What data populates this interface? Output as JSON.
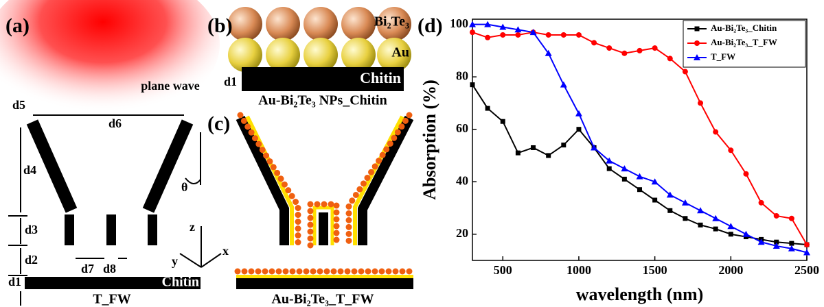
{
  "diagram": {
    "panel_labels": [
      "(a)",
      "(b)",
      "(c)",
      "(d)"
    ],
    "panel_a": {
      "plane_wave": "plane wave",
      "d5": "d5",
      "d6": "d6",
      "d4": "d4",
      "theta": "θ",
      "d3": "d3",
      "d2": "d2",
      "d1": "d1",
      "d7": "d7",
      "d8": "d8",
      "axis_z": "z",
      "axis_y": "y",
      "axis_x": "x",
      "substrate": "Chitin",
      "caption": "T_FW"
    },
    "panel_b": {
      "top": "Bi₂Te₃",
      "middle": "Au",
      "substrate": "Chitin",
      "d1": "d1",
      "caption": "Au-Bi₂Te₃ NPs_Chitin"
    },
    "panel_c": {
      "caption": "Au-Bi₂Te₃_T_FW"
    }
  },
  "chart_data": {
    "type": "line",
    "xlabel": "wavelength (nm)",
    "ylabel": "Absorption (%)",
    "x": [
      300,
      400,
      500,
      600,
      700,
      800,
      900,
      1000,
      1100,
      1200,
      1300,
      1400,
      1500,
      1600,
      1700,
      1800,
      1900,
      2000,
      2100,
      2200,
      2300,
      2400,
      2500
    ],
    "series": [
      {
        "name": "Au-Bi₂Te₃_Chitin",
        "color": "#000000",
        "marker": "square",
        "values": [
          77,
          68,
          63,
          51,
          53,
          50,
          54,
          60,
          53,
          45,
          41,
          37,
          33,
          29,
          26,
          23.5,
          22,
          20,
          19,
          18,
          17,
          16.5,
          16
        ]
      },
      {
        "name": "Au-Bi₂Te₃_T_FW",
        "color": "#ff0000",
        "marker": "circle",
        "values": [
          97,
          95,
          96,
          96,
          97,
          96,
          96,
          96,
          93,
          91,
          89,
          90,
          91,
          87,
          82,
          70,
          59,
          52,
          43,
          32,
          27,
          26,
          16
        ]
      },
      {
        "name": "T_FW",
        "color": "#0000ff",
        "marker": "triangle",
        "values": [
          100,
          100,
          99,
          98,
          97,
          89,
          77,
          66,
          53,
          48,
          45,
          42,
          40,
          35,
          32,
          29,
          26,
          23,
          20,
          17,
          15.5,
          14.5,
          13
        ]
      }
    ],
    "xlim": [
      300,
      2500
    ],
    "ylim": [
      10,
      102
    ],
    "xticks": [
      500,
      1000,
      1500,
      2000,
      2500
    ],
    "yticks": [
      20,
      40,
      60,
      80,
      100
    ],
    "legend": "upper right"
  }
}
